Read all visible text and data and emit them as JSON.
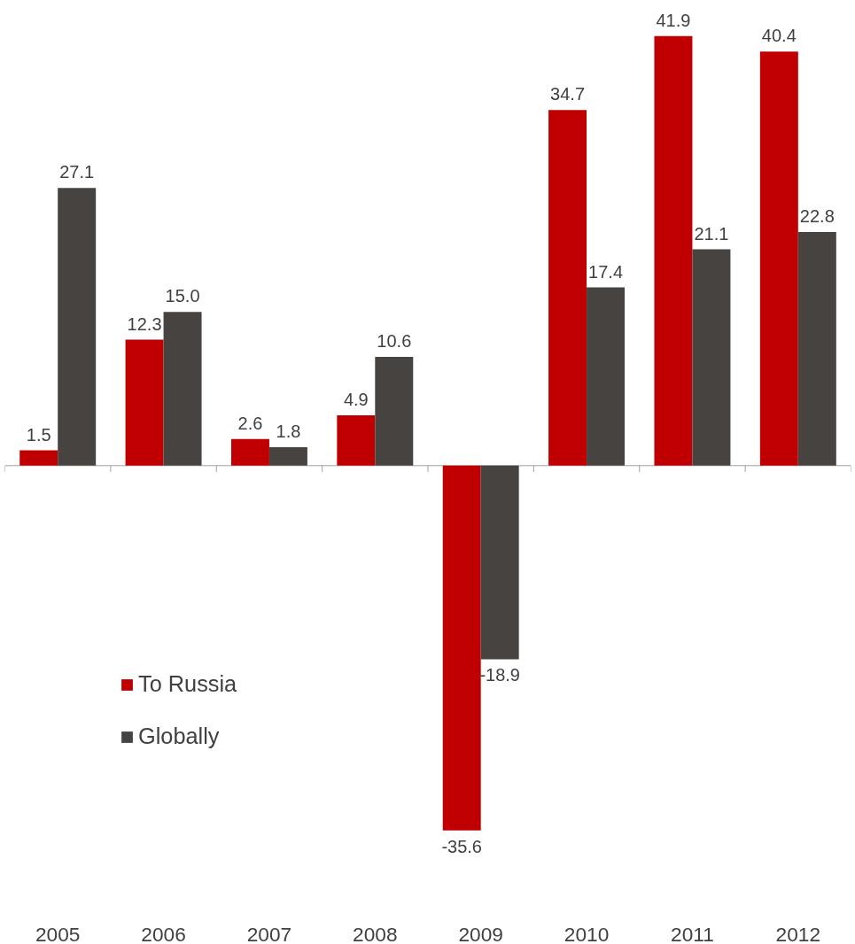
{
  "chart_data": {
    "type": "bar",
    "categories": [
      "2005",
      "2006",
      "2007",
      "2008",
      "2009",
      "2010",
      "2011",
      "2012"
    ],
    "series": [
      {
        "name": "To Russia",
        "color": "#c00000",
        "values": [
          1.5,
          12.3,
          2.6,
          4.9,
          -35.6,
          34.7,
          41.9,
          40.4
        ],
        "value_labels": [
          "1.5",
          "12.3",
          "2.6",
          "4.9",
          "-35.6",
          "34.7",
          "41.9",
          "40.4"
        ]
      },
      {
        "name": "Globally",
        "color": "#474340",
        "values": [
          27.1,
          15.0,
          1.8,
          10.6,
          -18.9,
          17.4,
          21.1,
          22.8
        ],
        "value_labels": [
          "27.1",
          "15.0",
          "1.8",
          "10.6",
          "-18.9",
          "17.4",
          "21.1",
          "22.8"
        ]
      }
    ],
    "legend": "left",
    "grid": false
  }
}
